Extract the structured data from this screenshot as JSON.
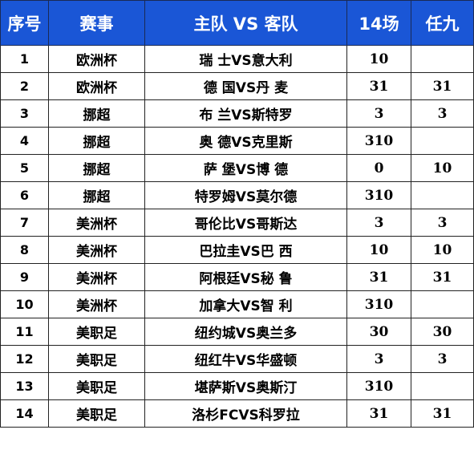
{
  "headers": {
    "num": "序号",
    "event": "赛事",
    "match": "主队 VS 客队",
    "pick14": "14场",
    "pick9": "任九"
  },
  "rows": [
    {
      "num": "1",
      "event": "欧洲杯",
      "match": "瑞 士VS意大利",
      "pick14": "10",
      "pick9": ""
    },
    {
      "num": "2",
      "event": "欧洲杯",
      "match": "德 国VS丹 麦",
      "pick14": "31",
      "pick9": "31"
    },
    {
      "num": "3",
      "event": "挪超",
      "match": "布 兰VS斯特罗",
      "pick14": "3",
      "pick9": "3"
    },
    {
      "num": "4",
      "event": "挪超",
      "match": "奥 德VS克里斯",
      "pick14": "310",
      "pick9": ""
    },
    {
      "num": "5",
      "event": "挪超",
      "match": "萨 堡VS博 德",
      "pick14": "0",
      "pick9": "10"
    },
    {
      "num": "6",
      "event": "挪超",
      "match": "特罗姆VS莫尔德",
      "pick14": "310",
      "pick9": ""
    },
    {
      "num": "7",
      "event": "美洲杯",
      "match": "哥伦比VS哥斯达",
      "pick14": "3",
      "pick9": "3"
    },
    {
      "num": "8",
      "event": "美洲杯",
      "match": "巴拉圭VS巴 西",
      "pick14": "10",
      "pick9": "10"
    },
    {
      "num": "9",
      "event": "美洲杯",
      "match": "阿根廷VS秘 鲁",
      "pick14": "31",
      "pick9": "31"
    },
    {
      "num": "10",
      "event": "美洲杯",
      "match": "加拿大VS智 利",
      "pick14": "310",
      "pick9": ""
    },
    {
      "num": "11",
      "event": "美职足",
      "match": "纽约城VS奥兰多",
      "pick14": "30",
      "pick9": "30"
    },
    {
      "num": "12",
      "event": "美职足",
      "match": "纽红牛VS华盛顿",
      "pick14": "3",
      "pick9": "3"
    },
    {
      "num": "13",
      "event": "美职足",
      "match": "堪萨斯VS奥斯汀",
      "pick14": "310",
      "pick9": ""
    },
    {
      "num": "14",
      "event": "美职足",
      "match": "洛杉FCVS科罗拉",
      "pick14": "31",
      "pick9": "31"
    }
  ],
  "colors": {
    "header_bg": "#1a56d6",
    "header_text": "#ffffff",
    "border": "#222222"
  }
}
